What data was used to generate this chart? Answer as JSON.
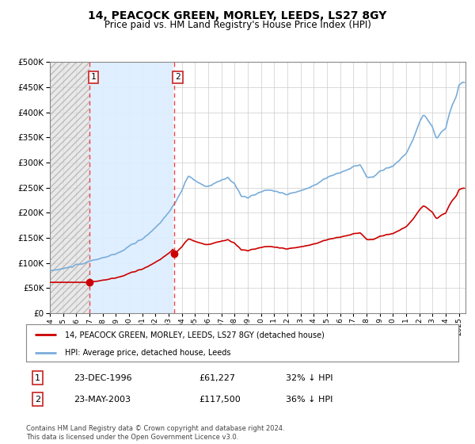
{
  "title": "14, PEACOCK GREEN, MORLEY, LEEDS, LS27 8GY",
  "subtitle": "Price paid vs. HM Land Registry's House Price Index (HPI)",
  "ylim": [
    0,
    500000
  ],
  "yticks": [
    0,
    50000,
    100000,
    150000,
    200000,
    250000,
    300000,
    350000,
    400000,
    450000,
    500000
  ],
  "ytick_labels": [
    "£0",
    "£50K",
    "£100K",
    "£150K",
    "£200K",
    "£250K",
    "£300K",
    "£350K",
    "£400K",
    "£450K",
    "£500K"
  ],
  "xmin": 1994.0,
  "xmax": 2025.5,
  "sale1_year": 1996.98,
  "sale1_price": 61227,
  "sale1_label": "23-DEC-1996",
  "sale1_pct": "32% ↓ HPI",
  "sale2_year": 2003.39,
  "sale2_price": 117500,
  "sale2_label": "23-MAY-2003",
  "sale2_pct": "36% ↓ HPI",
  "legend_line1": "14, PEACOCK GREEN, MORLEY, LEEDS, LS27 8GY (detached house)",
  "legend_line2": "HPI: Average price, detached house, Leeds",
  "footer": "Contains HM Land Registry data © Crown copyright and database right 2024.\nThis data is licensed under the Open Government Licence v3.0.",
  "price_line_color": "#cc0000",
  "hpi_line_color": "#7aadda",
  "vline_color": "#ee4444",
  "grid_color": "#cccccc",
  "box_color": "#cc3333",
  "shade_between_color": "#ddeeff",
  "hatch_color": "#cccccc"
}
